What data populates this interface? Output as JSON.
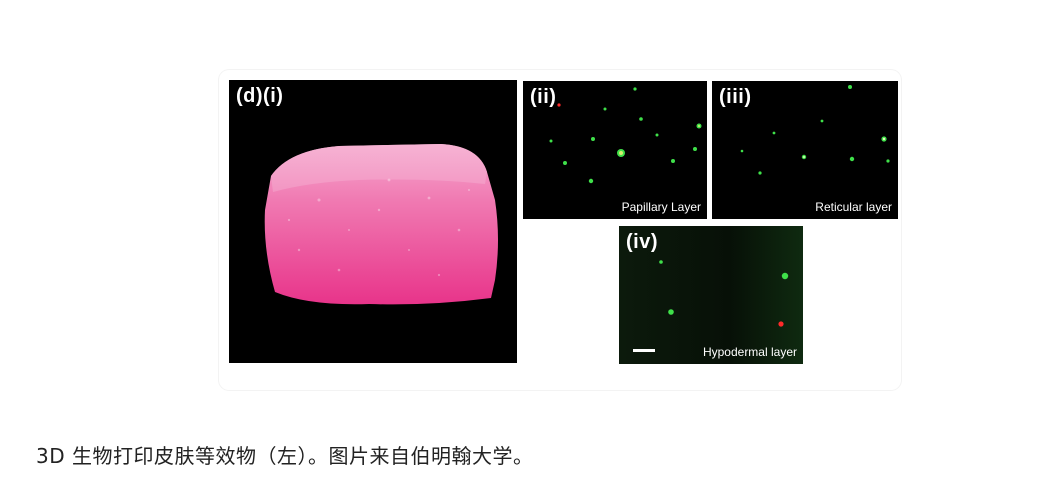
{
  "figure": {
    "panel_i": {
      "label": "(d)(i)"
    },
    "panel_ii": {
      "label": "(ii)",
      "caption": "Papillary Layer"
    },
    "panel_iii": {
      "label": "(iii)",
      "caption": "Reticular layer"
    },
    "panel_iv": {
      "label": "(iv)",
      "caption": "Hypodermal layer"
    }
  },
  "caption": "3D 生物打印皮肤等效物（左）。图片来自伯明翰大学。",
  "colors": {
    "tissue_pink": "#f0569a",
    "cell_green": "#3fe04a",
    "cell_red": "#ff2a2a"
  }
}
